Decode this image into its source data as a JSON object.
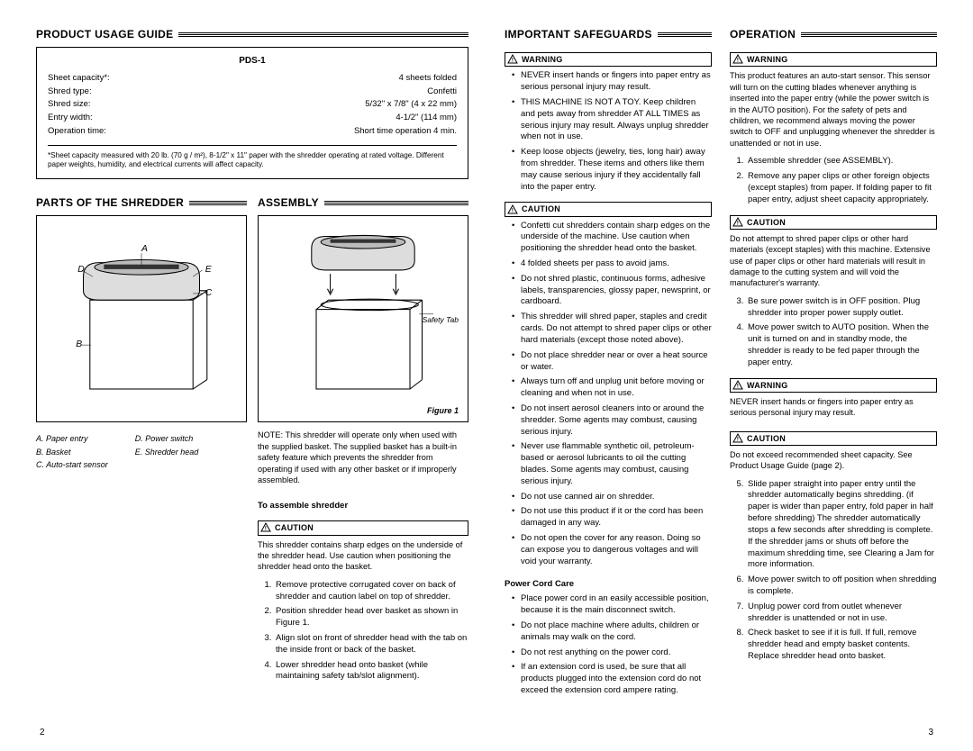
{
  "left": {
    "usage": {
      "title": "PRODUCT USAGE GUIDE",
      "model": "PDS-1",
      "specs": [
        {
          "label": "Sheet capacity*:",
          "value": "4 sheets folded"
        },
        {
          "label": "Shred type:",
          "value": "Confetti"
        },
        {
          "label": "Shred size:",
          "value": "5/32\" x 7/8\" (4 x 22 mm)"
        },
        {
          "label": "Entry width:",
          "value": "4-1/2\" (114 mm)"
        },
        {
          "label": "Operation time:",
          "value": "Short time operation 4 min."
        }
      ],
      "note": "*Sheet capacity measured with 20 lb. (70 g / m²), 8-1/2\" x 11\" paper with the shredder operating at rated voltage. Different paper weights, humidity, and electrical currents will affect capacity."
    },
    "parts": {
      "title": "PARTS OF THE SHREDDER",
      "letters": [
        "A",
        "B",
        "C",
        "D",
        "E"
      ],
      "legend_left": [
        "A. Paper entry",
        "B. Basket",
        "C. Auto-start sensor"
      ],
      "legend_right": [
        "D. Power switch",
        "E. Shredder head"
      ]
    },
    "assembly": {
      "title": "ASSEMBLY",
      "safety_tab": "Safety Tab",
      "figure": "Figure 1",
      "note": "NOTE: This shredder will operate only when used with the supplied basket. The supplied basket has a built-in safety feature which prevents the shredder from operating if used with any other basket or if improperly assembled.",
      "subhead": "To assemble shredder",
      "caution_badge": "CAUTION",
      "caution_text": "This shredder contains sharp edges on the underside of the shredder head. Use caution when positioning the shredder head onto the basket.",
      "steps": [
        "Remove protective corrugated cover on back of shredder and caution label on top of shredder.",
        "Position shredder head over basket as shown in Figure 1.",
        "Align slot on front of shredder head with the tab on the inside front or back of the basket.",
        "Lower shredder head onto basket (while maintaining safety tab/slot alignment)."
      ]
    },
    "page_num": "2"
  },
  "right": {
    "safeguards": {
      "title": "IMPORTANT SAFEGUARDS",
      "warning_badge": "WARNING",
      "caution_badge": "CAUTION",
      "warn_items": [
        "NEVER insert hands or fingers into paper entry as serious personal injury may result.",
        "THIS MACHINE IS NOT A TOY. Keep children and pets away from shredder AT ALL TIMES as serious injury may result. Always unplug shredder when not in use.",
        "Keep loose objects (jewelry, ties, long hair) away from shredder. These items and others like them may cause serious injury if they accidentally fall into the paper entry."
      ],
      "caution_items": [
        "Confetti cut shredders contain sharp edges on the underside of the machine. Use caution when positioning the shredder head onto the basket.",
        "4 folded sheets per pass to avoid jams.",
        "Do not shred plastic, continuous forms, adhesive labels, transparencies, glossy paper, newsprint, or cardboard.",
        "This shredder will shred paper, staples and credit cards. Do not attempt to shred paper clips or other hard materials (except those noted above).",
        "Do not place shredder near or over a heat source or water.",
        "Always turn off and unplug unit before moving or cleaning and when not in use.",
        "Do not insert aerosol cleaners into or around the shredder. Some agents may combust, causing serious injury.",
        "Never use flammable synthetic oil, petroleum-based or aerosol lubricants to oil the cutting blades. Some agents may combust, causing serious injury.",
        "Do not use canned air on shredder.",
        "Do not use this product if it or the cord has been damaged in any way.",
        "Do not open the cover for any reason. Doing so can expose you to dangerous voltages and will void your warranty."
      ],
      "cord_head": "Power Cord Care",
      "cord_items": [
        "Place power cord in an easily accessible position, because it is the main disconnect switch.",
        "Do not place machine where adults, children or animals may walk on the cord.",
        "Do not rest anything on the power cord.",
        "If an extension cord is used, be sure that all products plugged into the extension cord do not exceed the extension cord ampere rating."
      ]
    },
    "operation": {
      "title": "OPERATION",
      "warning_badge": "WARNING",
      "caution_badge": "CAUTION",
      "warn_text": "This product features an auto-start sensor. This sensor will turn on the cutting blades whenever anything is inserted into the paper entry (while the power switch is in the AUTO position). For the safety of pets and children, we recommend always moving the power switch to OFF and unplugging whenever the shredder is unattended or not in use.",
      "steps1": [
        "Assemble shredder (see ASSEMBLY).",
        "Remove any paper clips or other foreign objects (except staples) from paper. If folding paper to fit paper entry, adjust sheet capacity appropriately."
      ],
      "caution_text1": "Do not attempt to shred paper clips or other hard materials (except staples) with this machine. Extensive use of paper clips or other hard materials will result in damage to the cutting system and will void the manufacturer's warranty.",
      "steps2": [
        "Be sure power switch is in OFF position. Plug shredder into proper power supply outlet.",
        "Move power switch to AUTO position. When the unit is turned on and in standby mode, the shredder is ready to be fed paper through the paper entry."
      ],
      "warn_text2": "NEVER insert hands or fingers into paper entry as serious personal injury may result.",
      "caution_text2": "Do not exceed recommended sheet capacity. See Product Usage Guide (page 2).",
      "steps3": [
        "Slide paper straight into paper entry until the shredder automatically begins shredding. (if paper is wider than paper entry, fold paper in half before shredding) The shredder automatically stops a few seconds after shredding is complete. If the shredder jams or shuts off before the maximum shredding time, see Clearing a Jam for more information.",
        "Move power switch to off position when shredding is complete.",
        "Unplug power cord from outlet whenever shredder is unattended or not in use.",
        "Check basket to see if it is full. If full, remove shredder head and empty basket contents. Replace shredder head onto basket."
      ]
    },
    "page_num": "3"
  },
  "colors": {
    "text": "#000000",
    "bg": "#ffffff",
    "border": "#000000"
  }
}
